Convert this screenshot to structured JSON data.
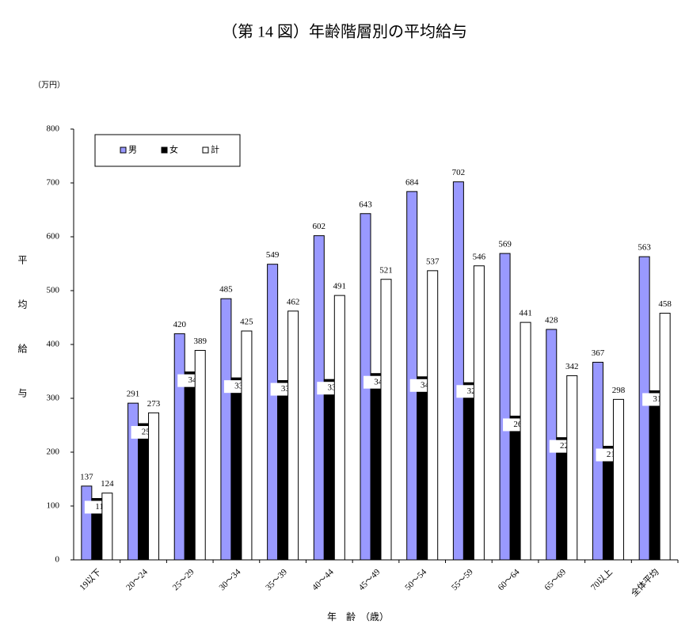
{
  "chart_data": {
    "type": "bar",
    "title": "（第 14 図）年齢階層別の平均給与",
    "y_unit": "（万円）",
    "y_label": "平均給与",
    "x_label": "年　齢　（歳）",
    "categories": [
      "19以下",
      "20～24",
      "25～29",
      "30～34",
      "35～39",
      "40～44",
      "45～49",
      "50～54",
      "55～59",
      "60～64",
      "65～69",
      "70以上",
      "全体平均"
    ],
    "series": [
      {
        "name": "男",
        "color": "#9999ff",
        "values": [
          137,
          291,
          420,
          485,
          549,
          602,
          643,
          684,
          702,
          569,
          428,
          367,
          563
        ]
      },
      {
        "name": "女",
        "color": "#000000",
        "values": [
          114,
          253,
          349,
          338,
          333,
          335,
          346,
          340,
          329,
          267,
          227,
          211,
          314
        ]
      },
      {
        "name": "計",
        "color": "#ffffff",
        "values": [
          124,
          273,
          389,
          425,
          462,
          491,
          521,
          537,
          546,
          441,
          342,
          298,
          458
        ]
      }
    ],
    "ylim": [
      0,
      800
    ],
    "yticks": [
      0,
      100,
      200,
      300,
      400,
      500,
      600,
      700,
      800
    ],
    "legend": "upper left"
  }
}
